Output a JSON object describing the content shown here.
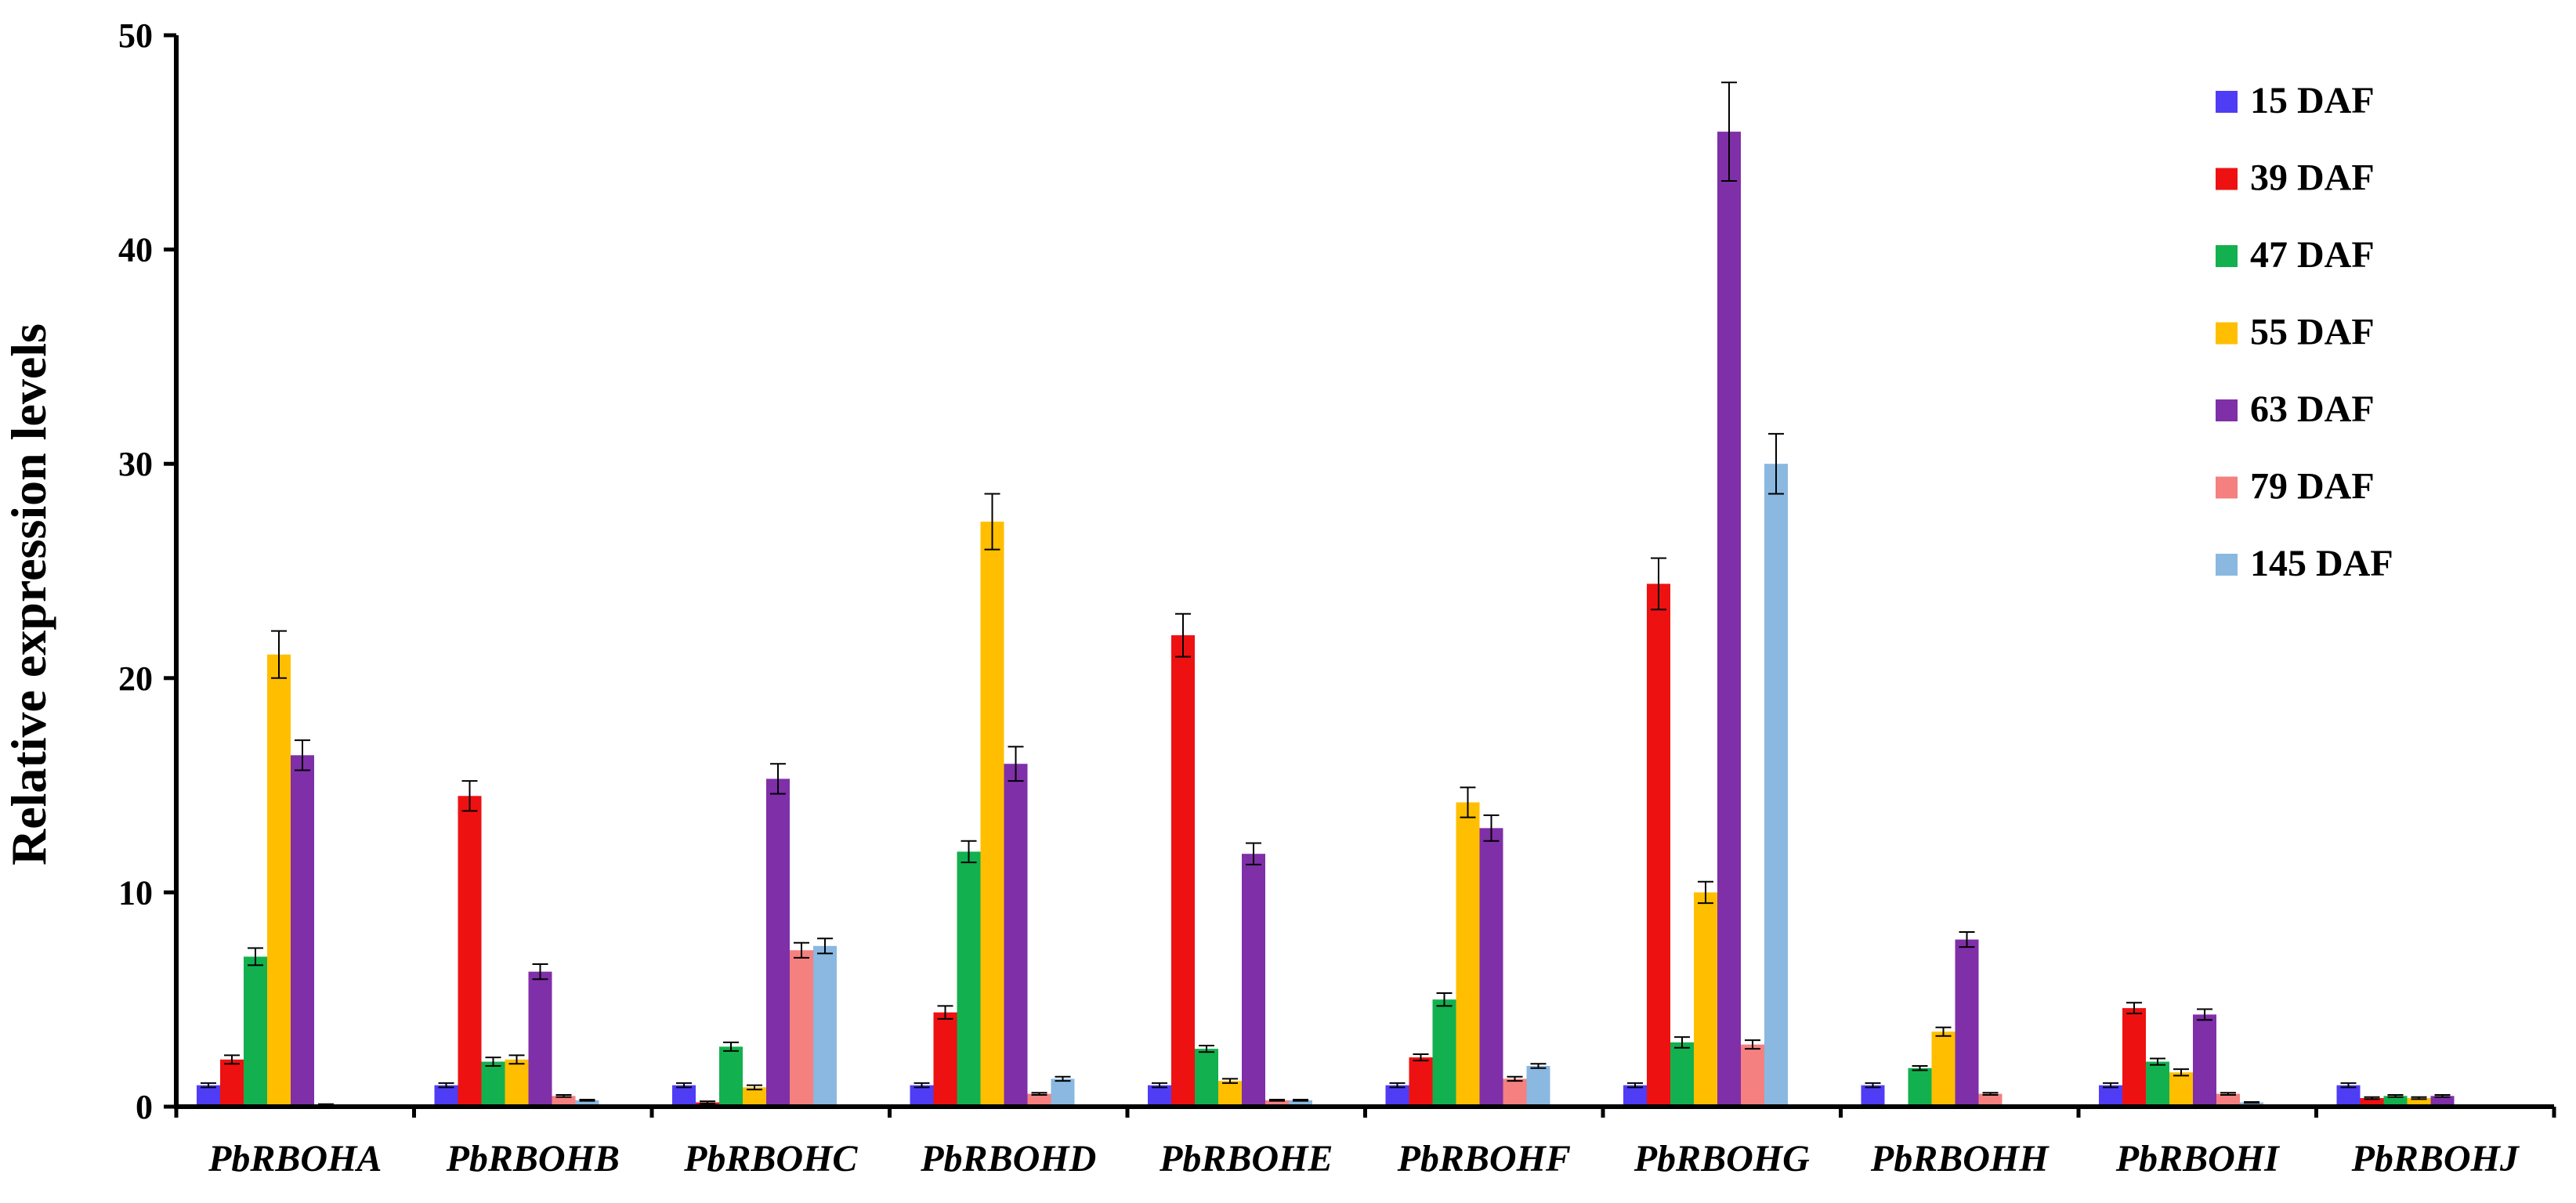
{
  "chart_data": {
    "type": "bar",
    "title": "",
    "xlabel": "",
    "ylabel": "Relative expression levels",
    "ylim": [
      0,
      50
    ],
    "yticks": [
      0,
      10,
      20,
      30,
      40,
      50
    ],
    "grid": false,
    "legend_position": "top-right",
    "error_bars": true,
    "categories": [
      "PbRBOHA",
      "PbRBOHB",
      "PbRBOHC",
      "PbRBOHD",
      "PbRBOHE",
      "PbRBOHF",
      "PbRBOHG",
      "PbRBOHH",
      "PbRBOHI",
      "PbRBOHJ"
    ],
    "series": [
      {
        "name": "15 DAF",
        "color": "#4f3df5",
        "values": [
          1,
          1,
          1,
          1,
          1,
          1,
          1,
          1,
          1,
          1
        ],
        "errors": [
          0.1,
          0.1,
          0.1,
          0.1,
          0.1,
          0.1,
          0.1,
          0.1,
          0.1,
          0.1
        ]
      },
      {
        "name": "39 DAF",
        "color": "#ee1111",
        "values": [
          2.2,
          14.5,
          0.2,
          4.4,
          22,
          2.3,
          24.4,
          0,
          4.6,
          0.4
        ],
        "errors": [
          0.2,
          0.7,
          0.05,
          0.3,
          1.0,
          0.15,
          1.2,
          0,
          0.25,
          0.05
        ]
      },
      {
        "name": "47 DAF",
        "color": "#13b04f",
        "values": [
          7,
          2.1,
          2.8,
          11.9,
          2.7,
          5,
          3,
          1.8,
          2.1,
          0.5
        ],
        "errors": [
          0.4,
          0.2,
          0.2,
          0.5,
          0.15,
          0.3,
          0.25,
          0.1,
          0.15,
          0.05
        ]
      },
      {
        "name": "55 DAF",
        "color": "#ffbf00",
        "values": [
          21.1,
          2.2,
          0.9,
          27.3,
          1.2,
          14.2,
          10,
          3.5,
          1.6,
          0.4
        ],
        "errors": [
          1.1,
          0.2,
          0.1,
          1.3,
          0.1,
          0.7,
          0.5,
          0.2,
          0.15,
          0.05
        ]
      },
      {
        "name": "63 DAF",
        "color": "#7f2fa8",
        "values": [
          16.4,
          6.3,
          15.3,
          16,
          11.8,
          13,
          45.5,
          7.8,
          4.3,
          0.5
        ],
        "errors": [
          0.7,
          0.35,
          0.7,
          0.8,
          0.5,
          0.6,
          2.3,
          0.35,
          0.25,
          0.05
        ]
      },
      {
        "name": "79 DAF",
        "color": "#f48080",
        "values": [
          0.1,
          0.5,
          7.3,
          0.6,
          0.3,
          1.3,
          2.9,
          0.6,
          0.6,
          0
        ],
        "errors": [
          0.02,
          0.05,
          0.35,
          0.05,
          0.03,
          0.1,
          0.2,
          0.05,
          0.05,
          0
        ]
      },
      {
        "name": "145 DAF",
        "color": "#8ab8e0",
        "values": [
          0,
          0.3,
          7.5,
          1.3,
          0.3,
          1.9,
          30,
          0,
          0.2,
          0
        ],
        "errors": [
          0,
          0.03,
          0.35,
          0.1,
          0.03,
          0.1,
          1.4,
          0,
          0.02,
          0
        ]
      }
    ]
  }
}
